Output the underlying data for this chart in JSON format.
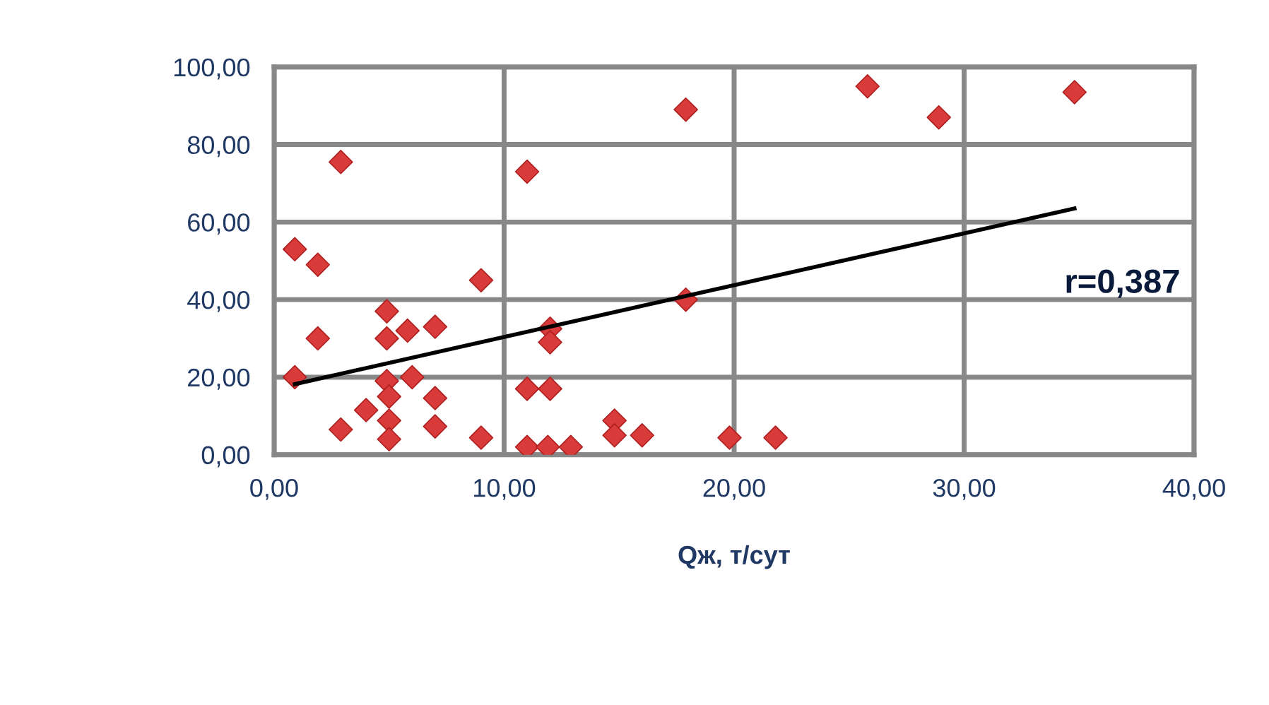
{
  "chart_data": {
    "type": "scatter",
    "xlabel": "Qж, т/сут",
    "annotations": [
      "r=0,387"
    ],
    "xlim": [
      0,
      40
    ],
    "ylim": [
      0,
      100
    ],
    "xticks": [
      {
        "value": 0,
        "label": "0,00"
      },
      {
        "value": 10,
        "label": "10,00"
      },
      {
        "value": 20,
        "label": "20,00"
      },
      {
        "value": 30,
        "label": "30,00"
      },
      {
        "value": 40,
        "label": "40,00"
      }
    ],
    "yticks": [
      {
        "value": 0,
        "label": "0,00"
      },
      {
        "value": 20,
        "label": "20,00"
      },
      {
        "value": 40,
        "label": "40,00"
      },
      {
        "value": 60,
        "label": "60,00"
      },
      {
        "value": 80,
        "label": "80,00"
      },
      {
        "value": 100,
        "label": "100,00"
      }
    ],
    "grid": true,
    "legend": false,
    "marker": "diamond",
    "series": [
      {
        "color": "#d93a3a",
        "x": [
          0.9,
          1.9,
          2.9,
          1.9,
          0.9,
          2.9,
          4,
          4.9,
          4.9,
          5.8,
          7,
          6,
          4.9,
          5,
          5,
          5,
          7,
          7,
          9,
          9,
          11,
          11,
          12,
          12,
          12,
          11,
          11.9,
          12.9,
          14.8,
          14.8,
          16,
          17.9,
          17.9,
          19.8,
          21.8,
          25.8,
          28.9,
          34.8
        ],
        "values": [
          53,
          49,
          75.5,
          30,
          20,
          6.5,
          11.5,
          37,
          30,
          32,
          33,
          20,
          19,
          15,
          8.8,
          4,
          14.6,
          7.3,
          45,
          4.4,
          73,
          17,
          17,
          32.5,
          29,
          2,
          2,
          2,
          8.8,
          5,
          5,
          89,
          40,
          4.4,
          4.4,
          95,
          87,
          93.5
        ]
      },
      {
        "type": "line",
        "color": "#000000",
        "marker": "none",
        "line_style": "solid",
        "x": [
          0.9,
          34.8
        ],
        "values": [
          18.2,
          63.5
        ]
      }
    ]
  }
}
